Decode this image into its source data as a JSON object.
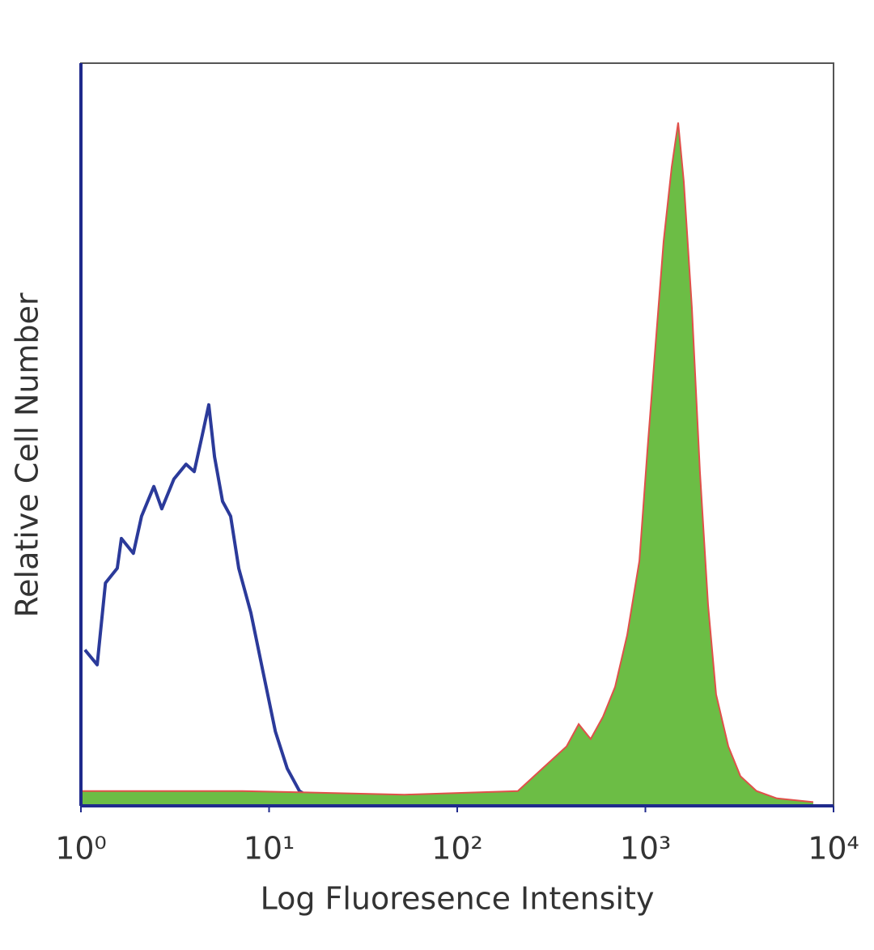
{
  "chart_data": {
    "type": "histogram-overlay",
    "x_label": "Log Fluoresence Intensity",
    "y_label": "Relative Cell Number",
    "xscale": "log",
    "xlim": [
      1,
      10000
    ],
    "xticks": [
      {
        "value": 1,
        "label": "10⁰"
      },
      {
        "value": 10,
        "label": "10¹"
      },
      {
        "value": 100,
        "label": "10²"
      },
      {
        "value": 1000,
        "label": "10³"
      },
      {
        "value": 10000,
        "label": "10⁴"
      }
    ],
    "ylim": [
      0,
      100
    ],
    "series": [
      {
        "color": "#2b3a9a",
        "filled": false,
        "x": [
          1.05,
          1.22,
          1.35,
          1.56,
          1.64,
          1.9,
          2.1,
          2.44,
          2.69,
          3.12,
          3.62,
          4.0,
          4.42,
          4.78,
          5.13,
          5.66,
          6.25,
          6.9,
          8.0,
          9.29,
          10.8,
          12.5,
          14.5,
          16.8,
          19.5
        ],
        "values": [
          21,
          19,
          30,
          32,
          36,
          34,
          39,
          43,
          40,
          44,
          46,
          45,
          50,
          54,
          47,
          41,
          39,
          32,
          26,
          18,
          10,
          5,
          2,
          1,
          0.2
        ]
      },
      {
        "color": "#6cbd45",
        "edge_color": "#e0504a",
        "filled": true,
        "x": [
          1.0,
          7.2,
          52.5,
          210,
          283,
          381,
          442,
          512,
          595,
          690,
          800,
          929,
          1026,
          1132,
          1250,
          1380,
          1493,
          1600,
          1767,
          1950,
          2154,
          2377,
          2760,
          3200,
          3900,
          5000,
          7800
        ],
        "values": [
          2,
          2,
          1.5,
          2,
          5,
          8,
          11,
          9,
          12,
          16,
          23,
          33,
          48,
          62,
          76,
          86,
          92,
          84,
          67,
          45,
          27,
          15,
          8,
          4,
          2,
          1,
          0.5
        ]
      }
    ]
  }
}
